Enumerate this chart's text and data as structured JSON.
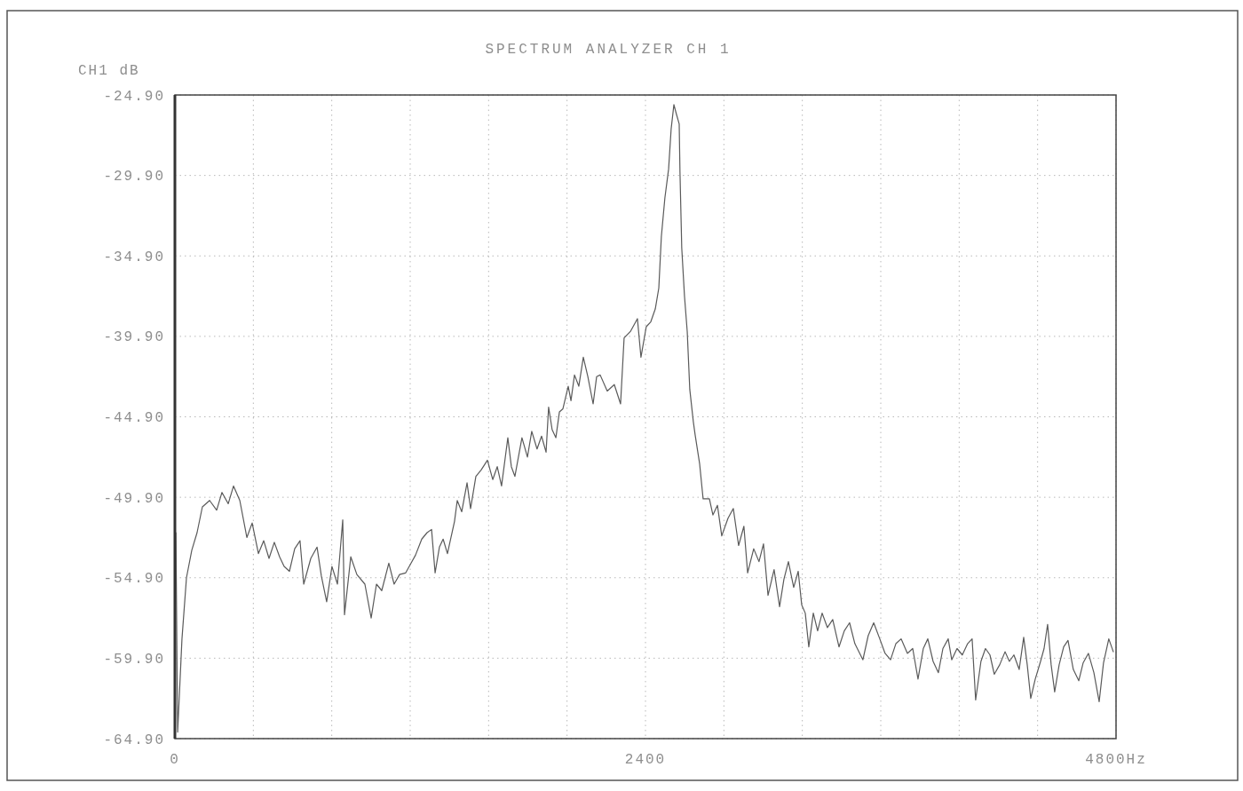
{
  "chart_data": {
    "type": "line",
    "title": "SPECTRUM ANALYZER CH 1",
    "ylabel": "CH1 dB",
    "xlim": [
      0,
      4800
    ],
    "xticks": [
      0,
      {
        "value": 400,
        "label": null
      },
      {
        "value": 800,
        "label": null
      },
      {
        "value": 1200,
        "label": null
      },
      {
        "value": 1600,
        "label": null
      },
      {
        "value": 2000,
        "label": null
      },
      2400,
      {
        "value": 2800,
        "label": null
      },
      {
        "value": 3200,
        "label": null
      },
      {
        "value": 3600,
        "label": null
      },
      {
        "value": 4000,
        "label": null
      },
      {
        "value": 4400,
        "label": null
      },
      {
        "value": 4800,
        "label": "4800Hz"
      }
    ],
    "ylim": [
      -64.9,
      -24.9
    ],
    "yticks": [
      {
        "value": -64.9,
        "label": "-64.90"
      },
      {
        "value": -59.9,
        "label": "-59.90"
      },
      {
        "value": -54.9,
        "label": "-54.90"
      },
      {
        "value": -49.9,
        "label": "-49.90"
      },
      {
        "value": -44.9,
        "label": "-44.90"
      },
      {
        "value": -39.9,
        "label": "-39.90"
      },
      {
        "value": -34.9,
        "label": "-34.90"
      },
      {
        "value": -29.9,
        "label": "-29.90"
      },
      {
        "value": -24.9,
        "label": "-24.90"
      }
    ],
    "grid": true,
    "series": [
      {
        "color": "#5a5a5a",
        "x": [
          5,
          14,
          36,
          59,
          86,
          113,
          140,
          177,
          213,
          240,
          272,
          299,
          331,
          367,
          394,
          426,
          453,
          480,
          507,
          534,
          557,
          584,
          611,
          638,
          657,
          693,
          725,
          747,
          774,
          801,
          829,
          856,
          865,
          897,
          928,
          969,
          1001,
          1028,
          1055,
          1091,
          1118,
          1146,
          1177,
          1204,
          1227,
          1259,
          1286,
          1309,
          1327,
          1349,
          1368,
          1390,
          1426,
          1440,
          1463,
          1490,
          1508,
          1535,
          1562,
          1594,
          1621,
          1644,
          1666,
          1698,
          1716,
          1734,
          1770,
          1798,
          1820,
          1847,
          1870,
          1893,
          1906,
          1924,
          1943,
          1961,
          1979,
          2006,
          2020,
          2038,
          2060,
          2083,
          2106,
          2133,
          2151,
          2169,
          2205,
          2241,
          2273,
          2291,
          2323,
          2359,
          2377,
          2404,
          2427,
          2450,
          2468,
          2481,
          2499,
          2518,
          2531,
          2545,
          2558,
          2572,
          2576,
          2585,
          2599,
          2613,
          2626,
          2644,
          2653,
          2676,
          2694,
          2726,
          2744,
          2767,
          2789,
          2821,
          2848,
          2875,
          2902,
          2921,
          2952,
          2979,
          3002,
          3025,
          3056,
          3084,
          3106,
          3129,
          3156,
          3179,
          3197,
          3215,
          3233,
          3256,
          3278,
          3301,
          3328,
          3355,
          3387,
          3414,
          3441,
          3468,
          3509,
          3536,
          3564,
          3595,
          3622,
          3650,
          3677,
          3704,
          3736,
          3763,
          3790,
          3817,
          3840,
          3867,
          3894,
          3917,
          3944,
          3962,
          3989,
          4016,
          4043,
          4066,
          4084,
          4111,
          4134,
          4157,
          4179,
          4207,
          4234,
          4256,
          4279,
          4306,
          4329,
          4347,
          4365,
          4388,
          4415,
          4433,
          4451,
          4469,
          4487,
          4510,
          4533,
          4555,
          4582,
          4610,
          4632,
          4659,
          4687,
          4714,
          4736,
          4763,
          4786
        ],
        "values": [
          -52.1,
          -64.5,
          -58.7,
          -54.9,
          -53.2,
          -52.1,
          -50.5,
          -50.1,
          -50.7,
          -49.6,
          -50.3,
          -49.2,
          -50.1,
          -52.4,
          -51.5,
          -53.4,
          -52.6,
          -53.7,
          -52.7,
          -53.6,
          -54.2,
          -54.5,
          -53.1,
          -52.6,
          -55.3,
          -53.7,
          -53.0,
          -54.8,
          -56.4,
          -54.2,
          -55.3,
          -51.3,
          -57.2,
          -53.6,
          -54.7,
          -55.3,
          -57.4,
          -55.3,
          -55.7,
          -54.0,
          -55.3,
          -54.7,
          -54.6,
          -54.0,
          -53.5,
          -52.5,
          -52.1,
          -51.9,
          -54.6,
          -53.0,
          -52.5,
          -53.4,
          -51.4,
          -50.1,
          -50.8,
          -49.0,
          -50.6,
          -48.6,
          -48.2,
          -47.6,
          -48.8,
          -48.0,
          -49.2,
          -46.2,
          -48.0,
          -48.6,
          -46.2,
          -47.4,
          -45.8,
          -46.9,
          -46.1,
          -47.1,
          -44.3,
          -45.7,
          -46.2,
          -44.6,
          -44.4,
          -43.0,
          -43.9,
          -42.3,
          -43.0,
          -41.2,
          -42.4,
          -44.1,
          -42.4,
          -42.3,
          -43.3,
          -42.9,
          -44.1,
          -40.0,
          -39.6,
          -38.8,
          -41.2,
          -39.3,
          -39.0,
          -38.2,
          -36.9,
          -33.7,
          -31.3,
          -29.5,
          -27.0,
          -25.5,
          -26.1,
          -26.7,
          -29.7,
          -34.4,
          -37.4,
          -39.6,
          -43.2,
          -45.2,
          -46.0,
          -47.8,
          -50.0,
          -50.0,
          -51.0,
          -50.4,
          -52.3,
          -51.2,
          -50.6,
          -52.9,
          -51.7,
          -54.6,
          -53.1,
          -53.9,
          -52.8,
          -56.0,
          -54.4,
          -56.7,
          -55.0,
          -53.9,
          -55.5,
          -54.5,
          -56.6,
          -57.1,
          -59.2,
          -57.1,
          -58.2,
          -57.1,
          -58.0,
          -57.5,
          -59.2,
          -58.2,
          -57.7,
          -59.0,
          -60.0,
          -58.5,
          -57.7,
          -58.7,
          -59.6,
          -60.0,
          -59.0,
          -58.7,
          -59.6,
          -59.3,
          -61.2,
          -59.3,
          -58.7,
          -60.1,
          -60.8,
          -59.3,
          -58.7,
          -60.0,
          -59.3,
          -59.7,
          -59.0,
          -58.7,
          -62.5,
          -60.1,
          -59.3,
          -59.7,
          -60.9,
          -60.3,
          -59.5,
          -60.1,
          -59.7,
          -60.6,
          -58.6,
          -60.3,
          -62.4,
          -61.2,
          -60.1,
          -59.3,
          -57.8,
          -60.3,
          -62.0,
          -60.3,
          -59.2,
          -58.8,
          -60.6,
          -61.3,
          -60.2,
          -59.6,
          -60.8,
          -62.6,
          -60.2,
          -58.7,
          -59.5
        ]
      }
    ]
  }
}
